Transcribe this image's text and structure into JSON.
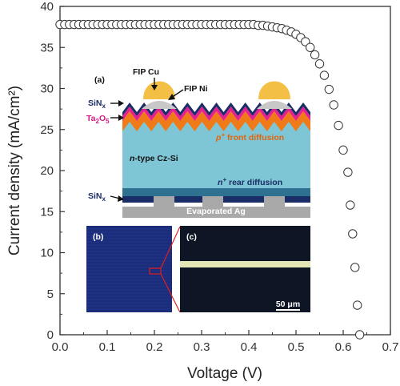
{
  "chart_data": {
    "type": "scatter",
    "xlabel": "Voltage (V)",
    "ylabel": "Current density (mA/cm²)",
    "xlim": [
      0,
      0.7
    ],
    "ylim": [
      0,
      40
    ],
    "x_ticks": [
      "0.0",
      "0.1",
      "0.2",
      "0.3",
      "0.4",
      "0.5",
      "0.6",
      "0.7"
    ],
    "y_ticks": [
      "0",
      "5",
      "10",
      "15",
      "20",
      "25",
      "30",
      "35",
      "40"
    ],
    "marker": "open-circle",
    "series": [
      {
        "points": [
          [
            0.0,
            37.8
          ],
          [
            0.01,
            37.8
          ],
          [
            0.02,
            37.8
          ],
          [
            0.03,
            37.8
          ],
          [
            0.04,
            37.8
          ],
          [
            0.05,
            37.8
          ],
          [
            0.06,
            37.8
          ],
          [
            0.07,
            37.8
          ],
          [
            0.08,
            37.8
          ],
          [
            0.09,
            37.8
          ],
          [
            0.1,
            37.8
          ],
          [
            0.11,
            37.8
          ],
          [
            0.12,
            37.8
          ],
          [
            0.13,
            37.8
          ],
          [
            0.14,
            37.8
          ],
          [
            0.15,
            37.8
          ],
          [
            0.16,
            37.8
          ],
          [
            0.17,
            37.8
          ],
          [
            0.18,
            37.8
          ],
          [
            0.19,
            37.8
          ],
          [
            0.2,
            37.8
          ],
          [
            0.21,
            37.8
          ],
          [
            0.22,
            37.8
          ],
          [
            0.23,
            37.8
          ],
          [
            0.24,
            37.8
          ],
          [
            0.25,
            37.8
          ],
          [
            0.26,
            37.8
          ],
          [
            0.27,
            37.8
          ],
          [
            0.28,
            37.8
          ],
          [
            0.29,
            37.8
          ],
          [
            0.3,
            37.8
          ],
          [
            0.31,
            37.8
          ],
          [
            0.32,
            37.8
          ],
          [
            0.33,
            37.8
          ],
          [
            0.34,
            37.8
          ],
          [
            0.35,
            37.8
          ],
          [
            0.36,
            37.8
          ],
          [
            0.37,
            37.8
          ],
          [
            0.38,
            37.8
          ],
          [
            0.39,
            37.8
          ],
          [
            0.4,
            37.8
          ],
          [
            0.41,
            37.8
          ],
          [
            0.42,
            37.7
          ],
          [
            0.43,
            37.7
          ],
          [
            0.44,
            37.6
          ],
          [
            0.45,
            37.5
          ],
          [
            0.46,
            37.4
          ],
          [
            0.47,
            37.3
          ],
          [
            0.48,
            37.1
          ],
          [
            0.49,
            36.9
          ],
          [
            0.5,
            36.6
          ],
          [
            0.51,
            36.2
          ],
          [
            0.52,
            35.7
          ],
          [
            0.53,
            35.0
          ],
          [
            0.54,
            34.1
          ],
          [
            0.55,
            33.0
          ],
          [
            0.56,
            31.6
          ],
          [
            0.57,
            29.9
          ],
          [
            0.58,
            28.0
          ],
          [
            0.59,
            25.5
          ],
          [
            0.6,
            22.5
          ],
          [
            0.61,
            19.8
          ],
          [
            0.615,
            15.8
          ],
          [
            0.62,
            12.3
          ],
          [
            0.625,
            8.2
          ],
          [
            0.63,
            3.6
          ],
          [
            0.635,
            0.0
          ]
        ]
      }
    ]
  },
  "inset": {
    "a_label": "(a)",
    "b_label": "(b)",
    "c_label": "(c)",
    "fip_cu": "FIP Cu",
    "fip_ni": "FIP Ni",
    "sinx_top": "SiN",
    "sinx_sub": "x",
    "ta2o5_a": "Ta",
    "ta2o5_b": "2",
    "ta2o5_c": "O",
    "ta2o5_d": "5",
    "front_diff_a": "p",
    "front_diff_b": "+",
    "front_diff_c": " front diffusion",
    "base_a": "n",
    "base_b": "-type Cz-Si",
    "rear_diff_a": "n",
    "rear_diff_b": "+",
    "rear_diff_c": " rear diffusion",
    "sinx_bottom": "SiN",
    "sinx_bottom_sub": "x",
    "ag": "Evaporated Ag",
    "scalebar": "50 μm"
  },
  "colors": {
    "base": "#7ec6d6",
    "front_diffusion": "#f07a17",
    "ta2o5": "#e6208f",
    "sinx": "#1b2d66",
    "fip_ni": "#c8c8c8",
    "fip_cu": "#f3bf45",
    "rear_diffusion": "#2f7190",
    "ag": "#a9a9a9",
    "ta2o5_label": "#d61b85",
    "front_diff_label": "#e0660a",
    "photo_b": "#1b2c7a",
    "photo_c": "#0e1524",
    "finger": "#e3e6b4"
  }
}
